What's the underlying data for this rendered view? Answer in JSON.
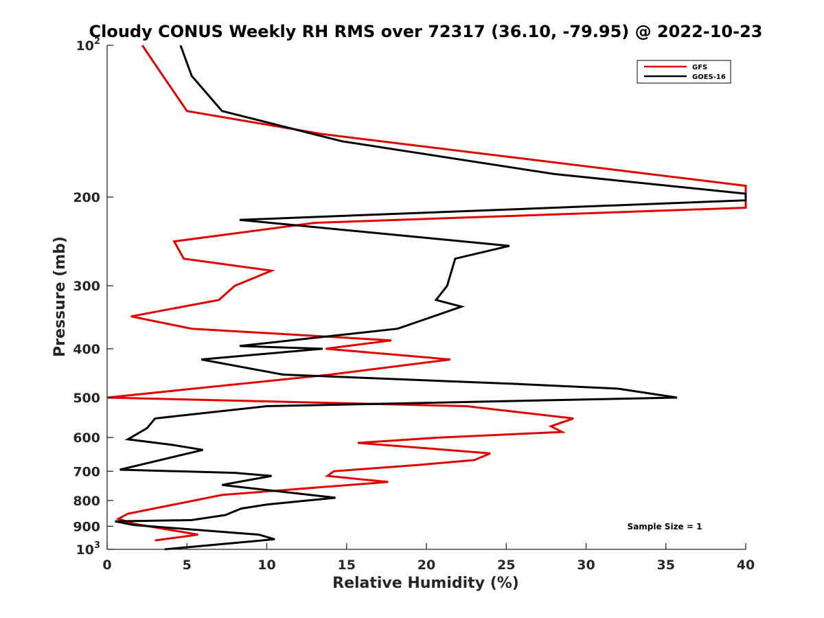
{
  "chart_data": {
    "type": "line",
    "title": "Cloudy CONUS Weekly RH RMS over 72317 (36.10, -79.95) @ 2022-10-23",
    "xlabel": "Relative Humidity (%)",
    "ylabel": "Pressure (mb)",
    "xlim": [
      0,
      40
    ],
    "ylim": [
      100,
      1000
    ],
    "yscale": "log",
    "y_reversed": true,
    "grid": false,
    "legend_position": "top-right",
    "x_ticks": [
      {
        "value": 0,
        "label": "0"
      },
      {
        "value": 5,
        "label": "5"
      },
      {
        "value": 10,
        "label": "10"
      },
      {
        "value": 15,
        "label": "15"
      },
      {
        "value": 20,
        "label": "20"
      },
      {
        "value": 25,
        "label": "25"
      },
      {
        "value": 30,
        "label": "30"
      },
      {
        "value": 35,
        "label": "35"
      },
      {
        "value": 40,
        "label": "40"
      }
    ],
    "y_ticks": [
      {
        "value": 100,
        "label": "10",
        "exp": "2"
      },
      {
        "value": 200,
        "label": "200",
        "exp": ""
      },
      {
        "value": 300,
        "label": "300",
        "exp": ""
      },
      {
        "value": 400,
        "label": "400",
        "exp": ""
      },
      {
        "value": 500,
        "label": "500",
        "exp": ""
      },
      {
        "value": 600,
        "label": "600",
        "exp": ""
      },
      {
        "value": 700,
        "label": "700",
        "exp": ""
      },
      {
        "value": 800,
        "label": "800",
        "exp": ""
      },
      {
        "value": 900,
        "label": "900",
        "exp": ""
      },
      {
        "value": 1000,
        "label": "10",
        "exp": "3"
      }
    ],
    "annotation": "Sample Size = 1",
    "series": [
      {
        "name": "GFS",
        "color": "#e00000",
        "points": [
          [
            2.2,
            100
          ],
          [
            3.5,
            115
          ],
          [
            5.0,
            135
          ],
          [
            13.5,
            150
          ],
          [
            40,
            190
          ],
          [
            40,
            210
          ],
          [
            13.0,
            225
          ],
          [
            4.2,
            245
          ],
          [
            4.8,
            265
          ],
          [
            10.3,
            280
          ],
          [
            8.0,
            300
          ],
          [
            7.0,
            320
          ],
          [
            1.5,
            345
          ],
          [
            5.3,
            365
          ],
          [
            17.8,
            385
          ],
          [
            13.7,
            400
          ],
          [
            21.5,
            420
          ],
          [
            14.0,
            450
          ],
          [
            0,
            500
          ],
          [
            22.5,
            520
          ],
          [
            29.2,
            550
          ],
          [
            27.8,
            570
          ],
          [
            28.5,
            585
          ],
          [
            20.8,
            600
          ],
          [
            15.7,
            615
          ],
          [
            24.0,
            645
          ],
          [
            23.0,
            665
          ],
          [
            19.5,
            680
          ],
          [
            14.2,
            700
          ],
          [
            13.8,
            715
          ],
          [
            17.6,
            735
          ],
          [
            7.2,
            780
          ],
          [
            1.3,
            850
          ],
          [
            0.7,
            870
          ],
          [
            1.7,
            890
          ],
          [
            5.7,
            935
          ],
          [
            3.0,
            960
          ]
        ]
      },
      {
        "name": "GOES-16",
        "color": "#000000",
        "points": [
          [
            4.6,
            100
          ],
          [
            5.3,
            115
          ],
          [
            7.2,
            135
          ],
          [
            14.7,
            155
          ],
          [
            28.0,
            180
          ],
          [
            40,
            197
          ],
          [
            40,
            203
          ],
          [
            8.3,
            222
          ],
          [
            25.2,
            250
          ],
          [
            21.8,
            265
          ],
          [
            21.3,
            300
          ],
          [
            20.6,
            320
          ],
          [
            22.2,
            330
          ],
          [
            18.2,
            365
          ],
          [
            8.3,
            395
          ],
          [
            13.5,
            400
          ],
          [
            5.9,
            420
          ],
          [
            11.0,
            450
          ],
          [
            25.8,
            470
          ],
          [
            32.0,
            480
          ],
          [
            35.7,
            500
          ],
          [
            10.0,
            520
          ],
          [
            3.0,
            550
          ],
          [
            2.5,
            575
          ],
          [
            1.3,
            605
          ],
          [
            4.0,
            620
          ],
          [
            6.0,
            635
          ],
          [
            0.8,
            695
          ],
          [
            8.0,
            705
          ],
          [
            10.3,
            715
          ],
          [
            7.2,
            745
          ],
          [
            14.3,
            790
          ],
          [
            10.0,
            815
          ],
          [
            8.4,
            830
          ],
          [
            7.4,
            855
          ],
          [
            5.3,
            875
          ],
          [
            0.5,
            880
          ],
          [
            1.7,
            895
          ],
          [
            9.5,
            935
          ],
          [
            10.5,
            955
          ],
          [
            3.6,
            1000
          ]
        ]
      }
    ]
  }
}
